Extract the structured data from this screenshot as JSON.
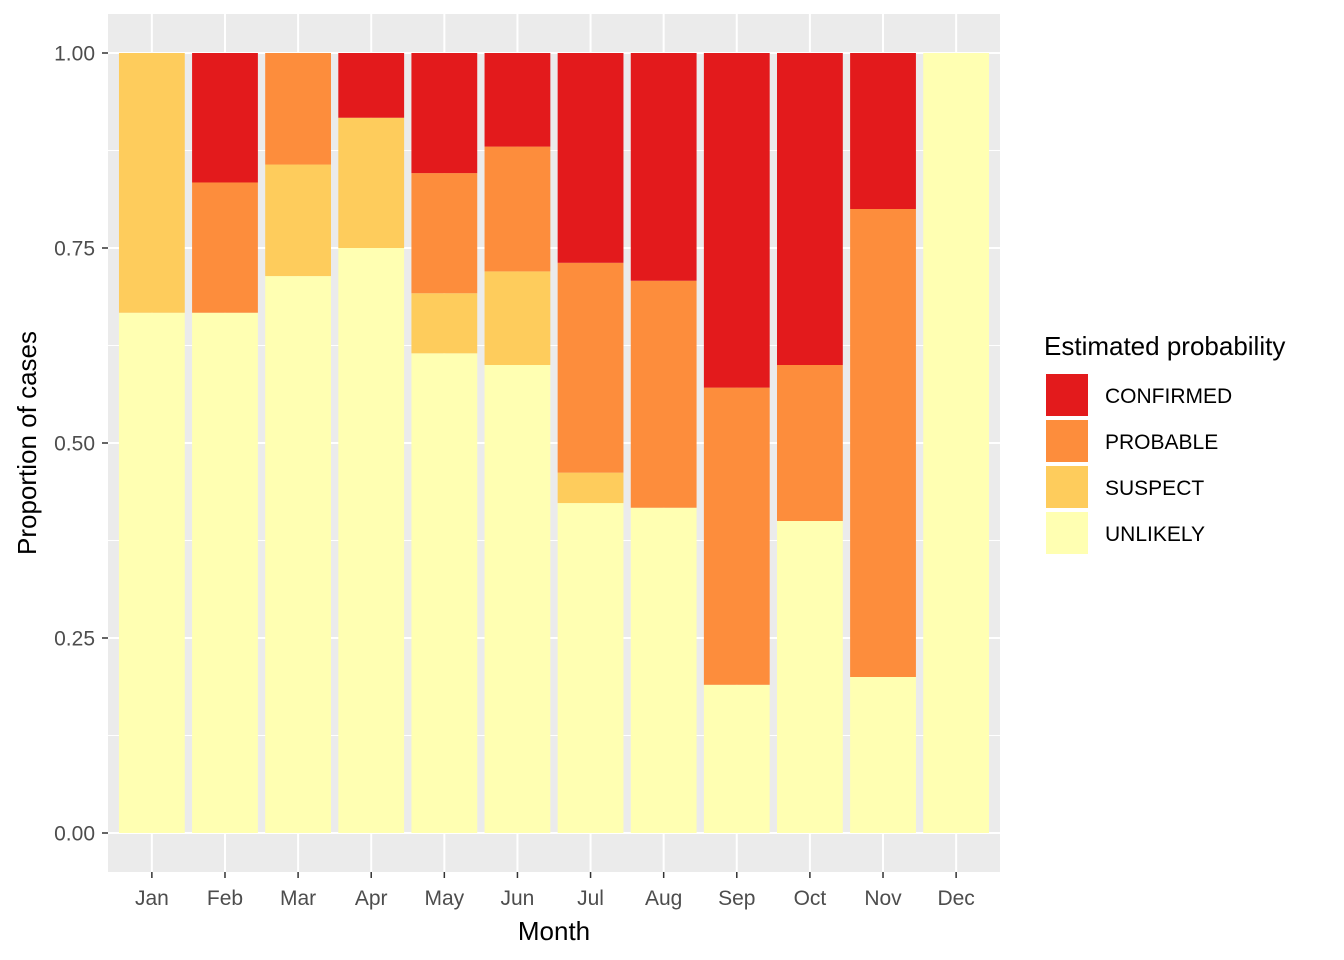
{
  "chart_data": {
    "type": "bar",
    "stacked": true,
    "xlabel": "Month",
    "ylabel": "Proportion of cases",
    "ylim": [
      0,
      1
    ],
    "y_ticks": [
      "0.00",
      "0.25",
      "0.50",
      "0.75",
      "1.00"
    ],
    "categories": [
      "Jan",
      "Feb",
      "Mar",
      "Apr",
      "May",
      "Jun",
      "Jul",
      "Aug",
      "Sep",
      "Oct",
      "Nov",
      "Dec"
    ],
    "legend": {
      "title": "Estimated probability",
      "position": "right"
    },
    "grid": true,
    "series": [
      {
        "name": "UNLIKELY",
        "color": "#FFFFB2",
        "values": [
          0.667,
          0.667,
          0.714,
          0.75,
          0.615,
          0.6,
          0.423,
          0.417,
          0.19,
          0.4,
          0.2,
          1.0
        ]
      },
      {
        "name": "SUSPECT",
        "color": "#FECC5C",
        "values": [
          0.333,
          0.0,
          0.143,
          0.167,
          0.077,
          0.12,
          0.039,
          0.0,
          0.0,
          0.0,
          0.0,
          0.0
        ]
      },
      {
        "name": "PROBABLE",
        "color": "#FD8D3C",
        "values": [
          0.0,
          0.167,
          0.143,
          0.0,
          0.154,
          0.16,
          0.269,
          0.291,
          0.381,
          0.2,
          0.6,
          0.0
        ]
      },
      {
        "name": "CONFIRMED",
        "color": "#E31A1C",
        "values": [
          0.0,
          0.166,
          0.0,
          0.083,
          0.154,
          0.12,
          0.269,
          0.292,
          0.429,
          0.4,
          0.2,
          0.0
        ]
      }
    ]
  }
}
